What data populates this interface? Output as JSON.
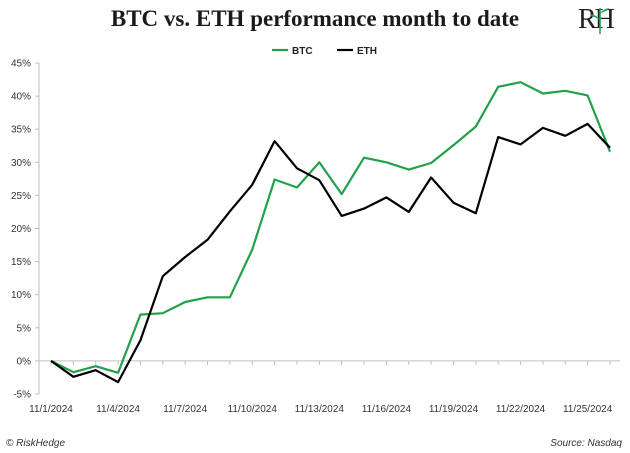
{
  "header": {
    "title": "BTC vs. ETH performance month to date"
  },
  "logo": {
    "text": "RH",
    "icon": "risk-hedge-logo",
    "accent": "#2e9e57"
  },
  "footer": {
    "left": "© RiskHedge",
    "right": "Source: Nasdaq"
  },
  "chart_data": {
    "type": "line",
    "title": "BTC vs. ETH performance month to date",
    "xlabel": "",
    "ylabel": "",
    "ylim": [
      -0.05,
      0.45
    ],
    "yticks": [
      "-5%",
      "0%",
      "5%",
      "10%",
      "15%",
      "20%",
      "25%",
      "30%",
      "35%",
      "40%",
      "45%"
    ],
    "x": [
      "11/1/2024",
      "11/2/2024",
      "11/3/2024",
      "11/4/2024",
      "11/5/2024",
      "11/6/2024",
      "11/7/2024",
      "11/8/2024",
      "11/9/2024",
      "11/10/2024",
      "11/11/2024",
      "11/12/2024",
      "11/13/2024",
      "11/14/2024",
      "11/15/2024",
      "11/16/2024",
      "11/17/2024",
      "11/18/2024",
      "11/19/2024",
      "11/20/2024",
      "11/21/2024",
      "11/22/2024",
      "11/23/2024",
      "11/24/2024",
      "11/25/2024",
      "11/26/2024"
    ],
    "xtick_labels": [
      "11/1/2024",
      "11/4/2024",
      "11/7/2024",
      "11/10/2024",
      "11/13/2024",
      "11/16/2024",
      "11/19/2024",
      "11/22/2024",
      "11/25/2024"
    ],
    "legend_position": "top-center",
    "grid": false,
    "series": [
      {
        "name": "BTC",
        "color": "#22a04b",
        "values": [
          0.0,
          -0.017,
          -0.008,
          -0.018,
          0.07,
          0.072,
          0.089,
          0.096,
          0.096,
          0.168,
          0.274,
          0.262,
          0.3,
          0.252,
          0.307,
          0.3,
          0.289,
          0.299,
          0.326,
          0.354,
          0.414,
          0.421,
          0.404,
          0.408,
          0.401,
          0.316
        ]
      },
      {
        "name": "ETH",
        "color": "#000000",
        "values": [
          0.0,
          -0.024,
          -0.014,
          -0.032,
          0.031,
          0.128,
          0.157,
          0.183,
          0.226,
          0.266,
          0.332,
          0.291,
          0.273,
          0.219,
          0.23,
          0.247,
          0.225,
          0.277,
          0.239,
          0.223,
          0.338,
          0.327,
          0.352,
          0.34,
          0.358,
          0.322
        ]
      }
    ]
  }
}
